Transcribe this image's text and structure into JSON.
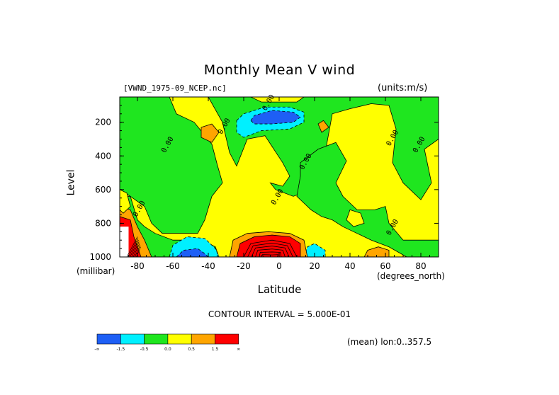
{
  "title": "Monthly Mean V wind",
  "dataset_label": "[VWND_1975-09_NCEP.nc]",
  "units_label": "(units:m/s)",
  "contour_interval": "CONTOUR INTERVAL = 5.000E-01",
  "mean_info": "(mean) lon:0..357.5",
  "palette": {
    "blue": "#1e5ff5",
    "cyan": "#00f0ff",
    "green": "#1fe61f",
    "yellow": "#ffff00",
    "orange": "#ffa500",
    "red": "#ff0000",
    "darkred": "#c81414"
  },
  "chart_data": {
    "type": "heatmap",
    "title": "Monthly Mean V wind",
    "xlabel": "Latitude",
    "xunits": "(degrees_north)",
    "ylabel": "Level",
    "yunits": "(millibar)",
    "xlim": [
      -90,
      90
    ],
    "ylim": [
      1000,
      50
    ],
    "x_ticks": [
      {
        "value": -80,
        "label": "-80"
      },
      {
        "value": -60,
        "label": "-60"
      },
      {
        "value": -40,
        "label": "-40"
      },
      {
        "value": -20,
        "label": "-20"
      },
      {
        "value": 0,
        "label": "0"
      },
      {
        "value": 20,
        "label": "20"
      },
      {
        "value": 40,
        "label": "40"
      },
      {
        "value": 60,
        "label": "60"
      },
      {
        "value": 80,
        "label": "80"
      }
    ],
    "y_ticks": [
      {
        "value": 200,
        "label": "200"
      },
      {
        "value": 400,
        "label": "400"
      },
      {
        "value": 600,
        "label": "600"
      },
      {
        "value": 800,
        "label": "800"
      },
      {
        "value": 1000,
        "label": "1000"
      }
    ],
    "contour_labels": [
      {
        "lat": -5,
        "lev": 90,
        "text": "0.00"
      },
      {
        "lat": -30,
        "lev": 230,
        "text": "0.00"
      },
      {
        "lat": -62,
        "lev": 340,
        "text": "0.00"
      },
      {
        "lat": -78,
        "lev": 720,
        "text": "0.00"
      },
      {
        "lat": 16,
        "lev": 440,
        "text": "0.00"
      },
      {
        "lat": 0,
        "lev": 650,
        "text": "0.00"
      },
      {
        "lat": 65,
        "lev": 300,
        "text": "0.00"
      },
      {
        "lat": 80,
        "lev": 340,
        "text": "0.00"
      },
      {
        "lat": 65,
        "lev": 830,
        "text": "0.00"
      }
    ],
    "colorbar": {
      "levels": [
        "-∞",
        "-1.5",
        "-0.5",
        "0.0",
        "0.5",
        "1.5",
        "∞"
      ],
      "colors": [
        "#1e5ff5",
        "#00f0ff",
        "#1fe61f",
        "#ffff00",
        "#ffa500",
        "#ff0000"
      ]
    }
  }
}
